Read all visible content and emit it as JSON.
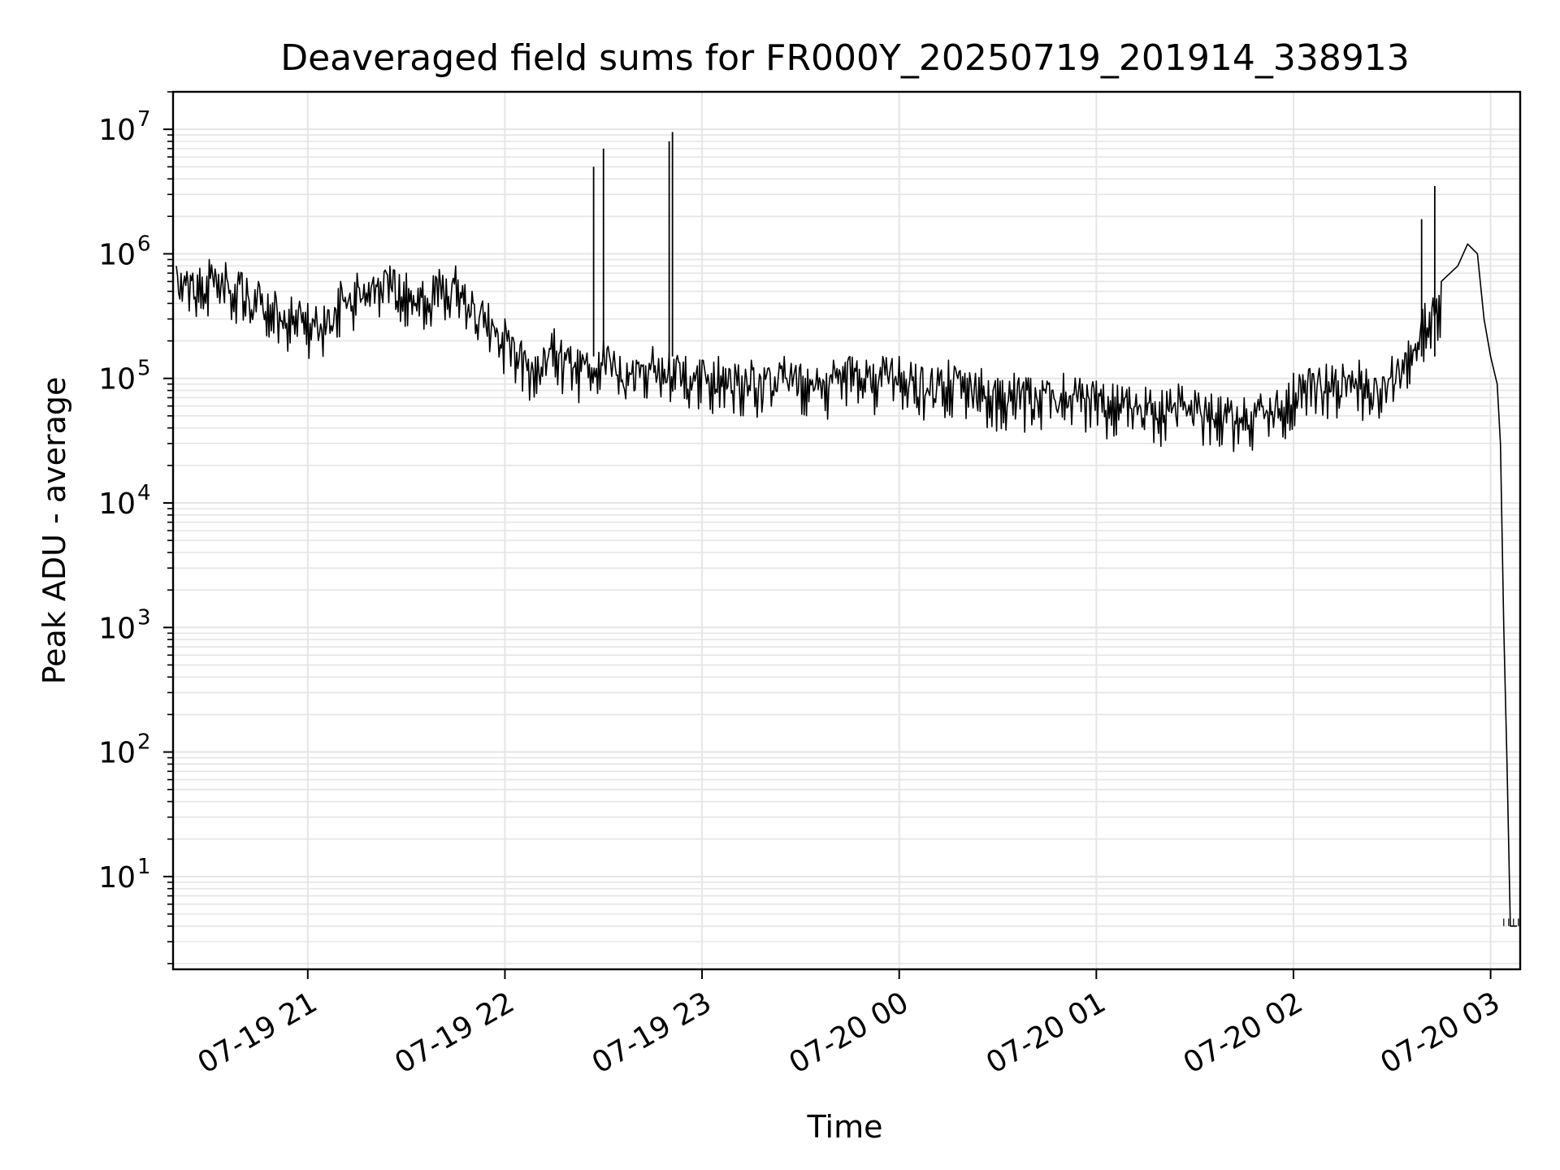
{
  "chart_data": {
    "type": "line",
    "title": "Deaveraged field sums for FR000Y_20250719_201914_338913",
    "xlabel": "Time",
    "ylabel": "Peak ADU - average",
    "yscale": "log",
    "ylim": [
      1.8,
      20000000
    ],
    "xlim": [
      "2025-07-19 20:19",
      "2025-07-20 03:09"
    ],
    "grid": true,
    "line_color": "#000000",
    "grid_color": "#e5e5e5",
    "x_tick_labels": [
      "07-19 21",
      "07-19 22",
      "07-19 23",
      "07-20 00",
      "07-20 01",
      "07-20 02",
      "07-20 03"
    ],
    "x_tick_values": [
      "2025-07-19 21:00",
      "2025-07-19 22:00",
      "2025-07-19 23:00",
      "2025-07-20 00:00",
      "2025-07-20 01:00",
      "2025-07-20 02:00",
      "2025-07-20 03:00"
    ],
    "y_tick_labels": [
      {
        "base": "10",
        "exp": "1",
        "value": 10
      },
      {
        "base": "10",
        "exp": "2",
        "value": 100
      },
      {
        "base": "10",
        "exp": "3",
        "value": 1000
      },
      {
        "base": "10",
        "exp": "4",
        "value": 10000
      },
      {
        "base": "10",
        "exp": "5",
        "value": 100000
      },
      {
        "base": "10",
        "exp": "6",
        "value": 1000000
      },
      {
        "base": "10",
        "exp": "7",
        "value": 10000000
      }
    ],
    "series": [
      {
        "x": [
          "2025-07-19 20:20",
          "2025-07-19 20:25",
          "2025-07-19 20:30",
          "2025-07-19 20:35",
          "2025-07-19 20:40",
          "2025-07-19 20:45",
          "2025-07-19 20:50",
          "2025-07-19 20:55",
          "2025-07-19 21:00",
          "2025-07-19 21:05",
          "2025-07-19 21:10",
          "2025-07-19 21:15",
          "2025-07-19 21:20",
          "2025-07-19 21:25",
          "2025-07-19 21:30",
          "2025-07-19 21:35",
          "2025-07-19 21:40",
          "2025-07-19 21:45",
          "2025-07-19 21:50",
          "2025-07-19 21:55",
          "2025-07-19 22:00",
          "2025-07-19 22:05",
          "2025-07-19 22:10",
          "2025-07-19 22:15",
          "2025-07-19 22:20",
          "2025-07-19 22:25",
          "2025-07-19 22:30",
          "2025-07-19 22:35",
          "2025-07-19 22:40",
          "2025-07-19 22:45",
          "2025-07-19 22:50",
          "2025-07-19 22:55",
          "2025-07-19 23:00",
          "2025-07-19 23:05",
          "2025-07-19 23:10",
          "2025-07-19 23:15",
          "2025-07-19 23:20",
          "2025-07-19 23:25",
          "2025-07-19 23:30",
          "2025-07-19 23:35",
          "2025-07-19 23:40",
          "2025-07-19 23:45",
          "2025-07-19 23:50",
          "2025-07-19 23:55",
          "2025-07-20 00:00",
          "2025-07-20 00:05",
          "2025-07-20 00:10",
          "2025-07-20 00:15",
          "2025-07-20 00:20",
          "2025-07-20 00:25",
          "2025-07-20 00:30",
          "2025-07-20 00:35",
          "2025-07-20 00:40",
          "2025-07-20 00:45",
          "2025-07-20 00:50",
          "2025-07-20 00:55",
          "2025-07-20 01:00",
          "2025-07-20 01:05",
          "2025-07-20 01:10",
          "2025-07-20 01:15",
          "2025-07-20 01:20",
          "2025-07-20 01:25",
          "2025-07-20 01:30",
          "2025-07-20 01:35",
          "2025-07-20 01:40",
          "2025-07-20 01:45",
          "2025-07-20 01:50",
          "2025-07-20 01:55",
          "2025-07-20 02:00",
          "2025-07-20 02:05",
          "2025-07-20 02:10",
          "2025-07-20 02:15",
          "2025-07-20 02:20",
          "2025-07-20 02:25",
          "2025-07-20 02:30",
          "2025-07-20 02:35",
          "2025-07-20 02:40",
          "2025-07-20 02:45",
          "2025-07-20 02:50",
          "2025-07-20 02:53",
          "2025-07-20 02:56",
          "2025-07-20 02:58",
          "2025-07-20 03:00",
          "2025-07-20 03:02",
          "2025-07-20 03:03",
          "2025-07-20 03:04",
          "2025-07-20 03:05",
          "2025-07-20 03:06",
          "2025-07-20 03:07",
          "2025-07-20 03:08"
        ],
        "y": [
          800000,
          700000,
          900000,
          850000,
          700000,
          600000,
          500000,
          450000,
          400000,
          380000,
          600000,
          700000,
          650000,
          800000,
          700000,
          600000,
          750000,
          800000,
          500000,
          400000,
          300000,
          200000,
          150000,
          250000,
          180000,
          160000,
          200000,
          150000,
          140000,
          180000,
          160000,
          150000,
          140000,
          150000,
          130000,
          140000,
          120000,
          150000,
          130000,
          120000,
          140000,
          150000,
          140000,
          150000,
          150000,
          130000,
          120000,
          140000,
          110000,
          120000,
          100000,
          110000,
          100000,
          95000,
          110000,
          100000,
          95000,
          90000,
          85000,
          85000,
          80000,
          90000,
          80000,
          75000,
          70000,
          70000,
          75000,
          80000,
          110000,
          120000,
          130000,
          130000,
          140000,
          100000,
          150000,
          200000,
          400000,
          600000,
          800000,
          1200000,
          1000000,
          300000,
          150000,
          90000,
          30000,
          1000,
          80,
          4,
          4,
          4
        ],
        "spikes": [
          {
            "x": "2025-07-19 22:27",
            "y": 5000000
          },
          {
            "x": "2025-07-19 22:30",
            "y": 7000000
          },
          {
            "x": "2025-07-19 22:50",
            "y": 8000000
          },
          {
            "x": "2025-07-19 22:51",
            "y": 9500000
          },
          {
            "x": "2025-07-20 02:43",
            "y": 3500000
          },
          {
            "x": "2025-07-20 02:39",
            "y": 1900000
          }
        ]
      }
    ]
  }
}
